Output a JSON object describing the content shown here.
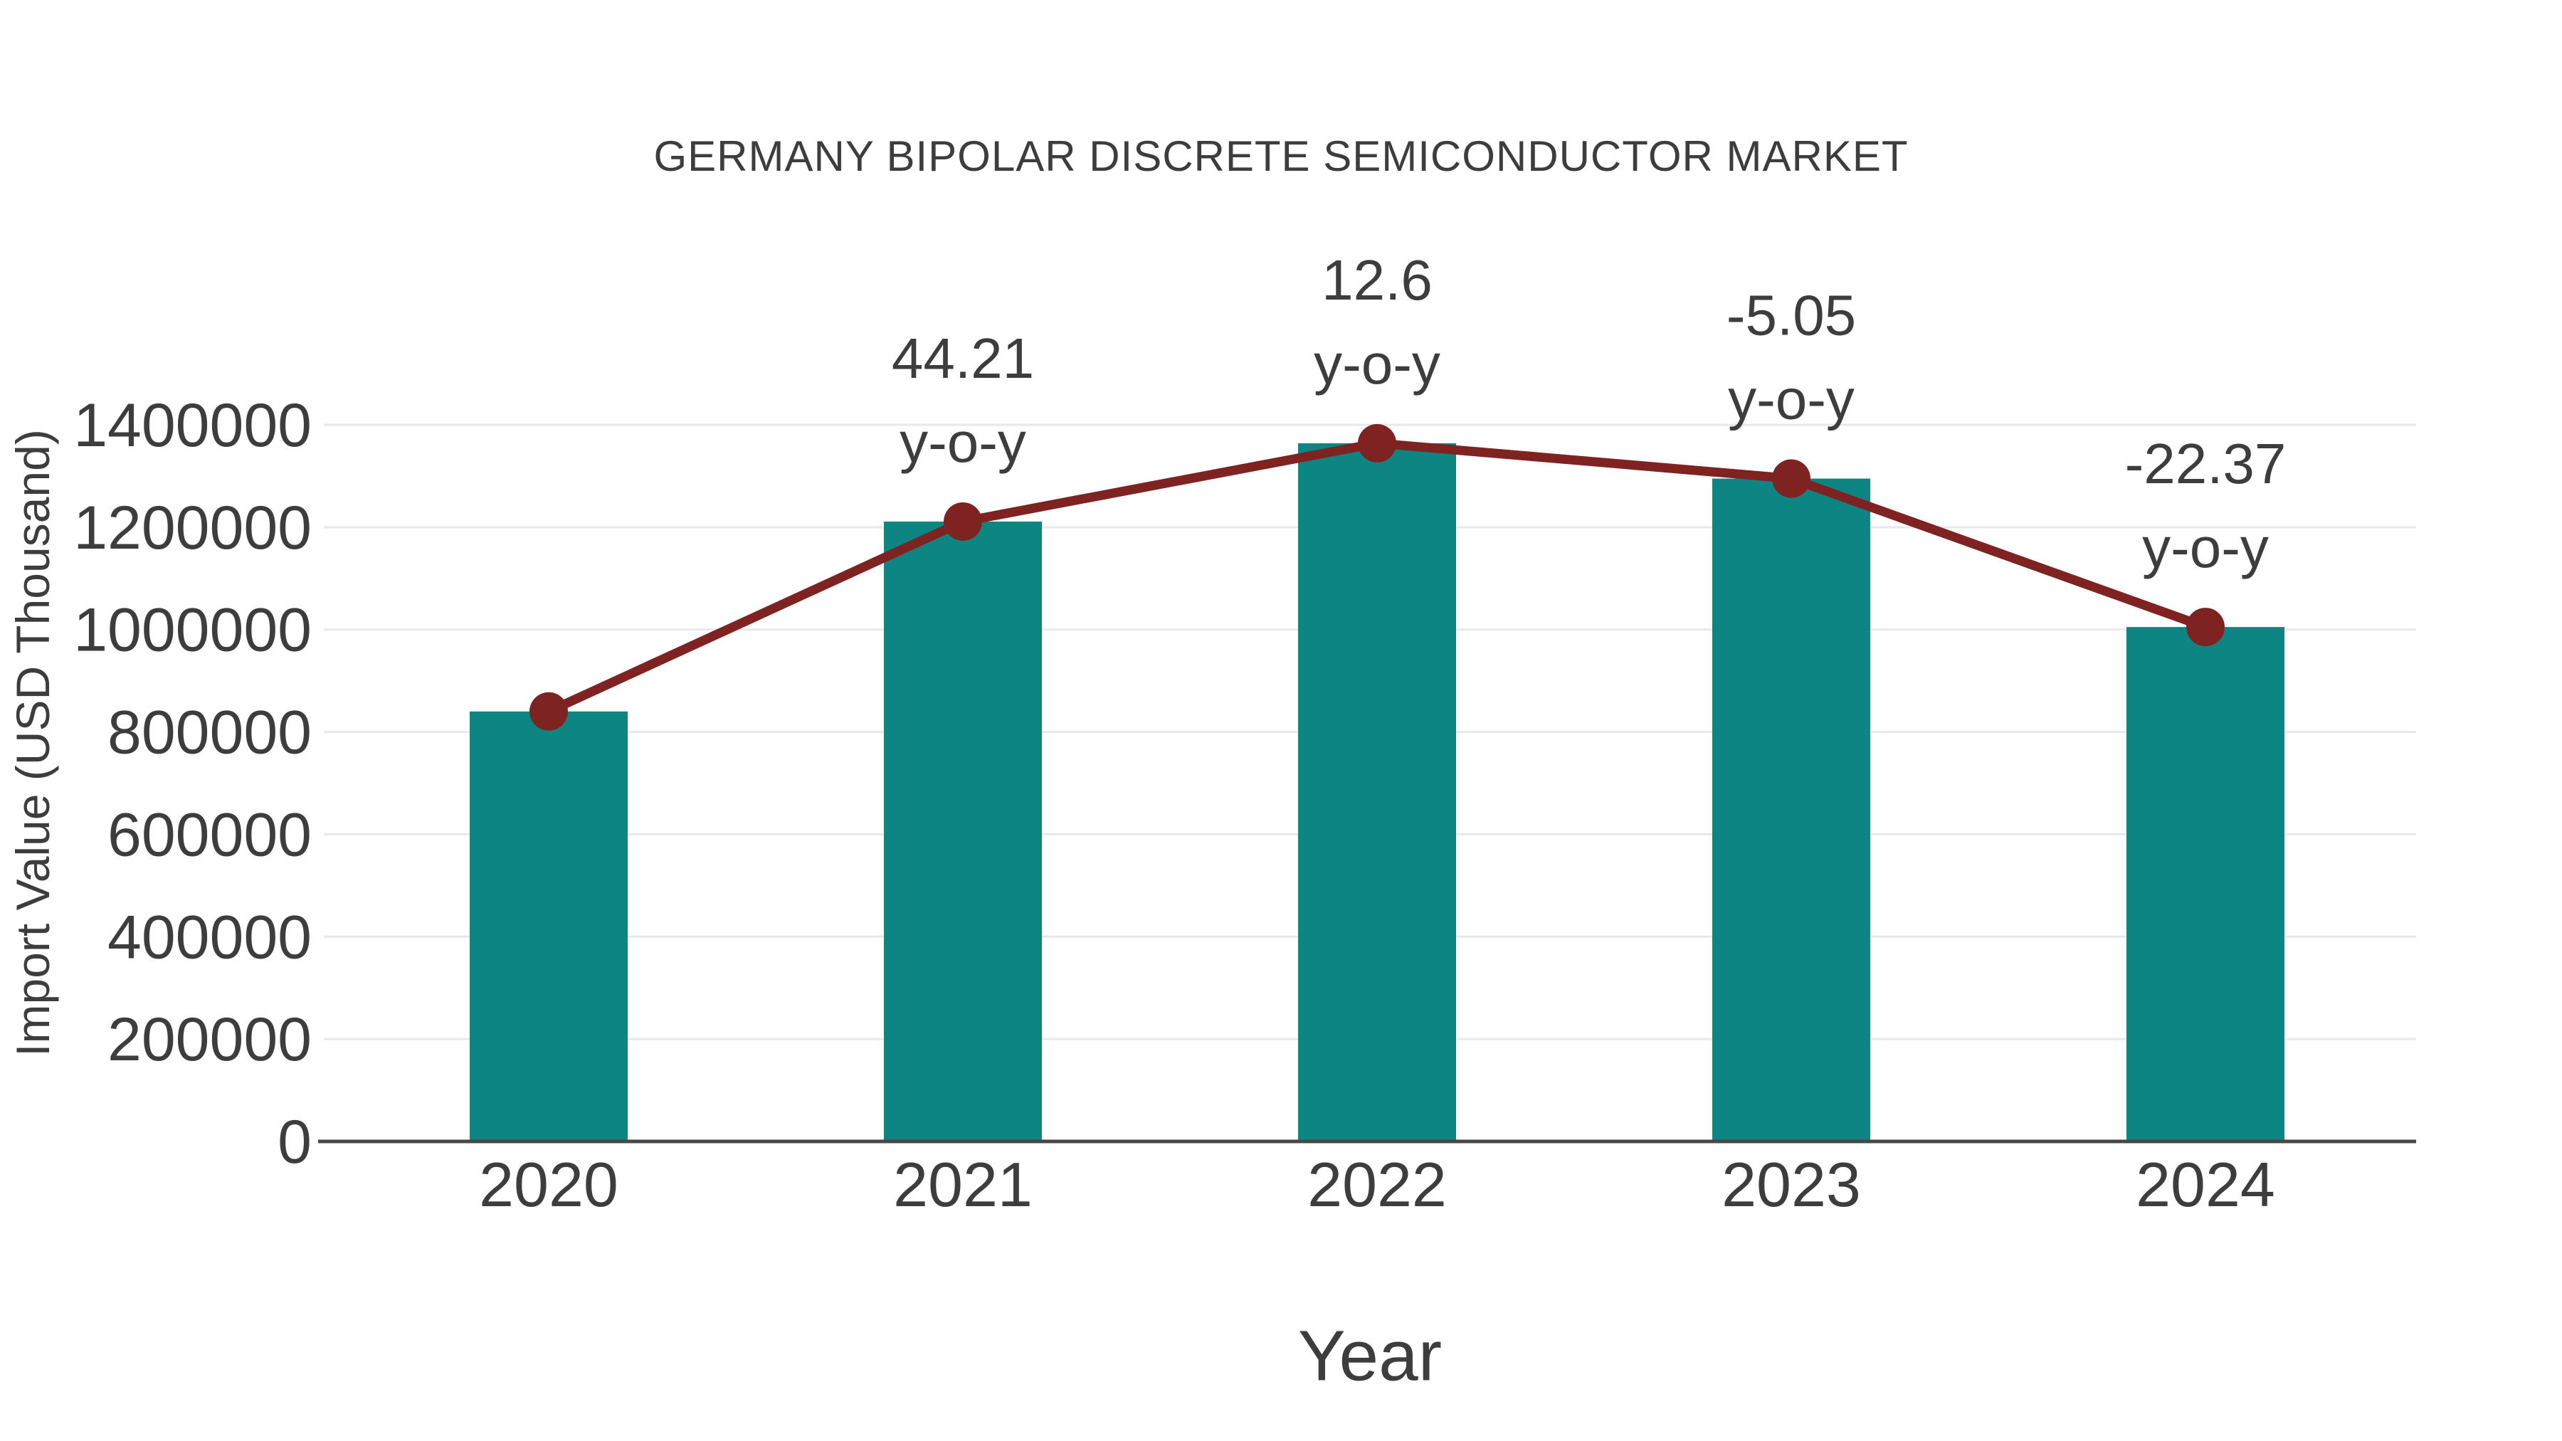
{
  "chart": {
    "title": "GERMANY BIPOLAR DISCRETE SEMICONDUCTOR MARKET",
    "xlabel": "Year",
    "ylabel": "Import Value (USD Thousand)"
  },
  "chart_data": {
    "type": "bar",
    "title": "GERMANY BIPOLAR DISCRETE SEMICONDUCTOR MARKET",
    "xlabel": "Year",
    "ylabel": "Import Value (USD Thousand)",
    "categories": [
      "2020",
      "2021",
      "2022",
      "2023",
      "2024"
    ],
    "values": [
      840000,
      1211000,
      1364000,
      1295000,
      1005000
    ],
    "ylim": [
      0,
      1400000
    ],
    "ytick_step": 200000,
    "yticks": [
      0,
      200000,
      400000,
      600000,
      800000,
      1000000,
      1200000,
      1400000
    ],
    "grid": true,
    "legend": "none",
    "line_overlay": {
      "name": "y-o-y",
      "anchored_to": "bar_tops",
      "labels": [
        "",
        "44.21",
        "12.6",
        "-5.05",
        "-22.37"
      ],
      "label_suffix": "y-o-y"
    }
  },
  "colors": {
    "bar": "#0d8683",
    "line": "#7e2222",
    "text": "#3d3d3d",
    "grid": "#e9e9e9",
    "axis": "#474747"
  }
}
